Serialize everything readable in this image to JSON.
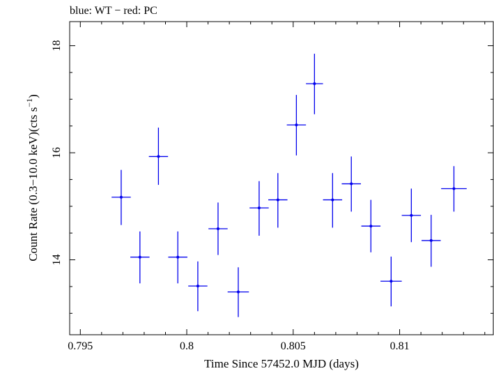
{
  "chart_data": {
    "type": "scatter",
    "title": "blue: WT − red: PC",
    "xlabel": "Time Since 57452.0 MJD (days)",
    "ylabel_main": "Count Rate (0.3−10.0 keV)(cts s",
    "ylabel_sup": "−1",
    "ylabel_end": ")",
    "xlim": [
      0.7945,
      0.8144
    ],
    "ylim": [
      12.6,
      18.45
    ],
    "xticks": [
      0.795,
      0.8,
      0.805,
      0.81
    ],
    "xtick_labels": [
      "0.795",
      "0.8",
      "0.805",
      "0.81"
    ],
    "yticks": [
      14,
      16,
      18
    ],
    "ytick_labels": [
      "14",
      "16",
      "18"
    ],
    "grid": false,
    "series": [
      {
        "color": "#0000ee",
        "points": [
          {
            "x": 0.79692,
            "y": 15.17,
            "xerr": 0.00045,
            "ylo": 14.65,
            "yhi": 15.68
          },
          {
            "x": 0.7978,
            "y": 14.05,
            "xerr": 0.00045,
            "ylo": 13.56,
            "yhi": 14.53
          },
          {
            "x": 0.79867,
            "y": 15.93,
            "xerr": 0.00045,
            "ylo": 15.4,
            "yhi": 16.47
          },
          {
            "x": 0.79958,
            "y": 14.05,
            "xerr": 0.00045,
            "ylo": 13.56,
            "yhi": 14.53
          },
          {
            "x": 0.80052,
            "y": 13.51,
            "xerr": 0.00045,
            "ylo": 13.04,
            "yhi": 13.97
          },
          {
            "x": 0.80147,
            "y": 14.58,
            "xerr": 0.00045,
            "ylo": 14.09,
            "yhi": 15.07
          },
          {
            "x": 0.80242,
            "y": 13.4,
            "xerr": 0.0005,
            "ylo": 12.93,
            "yhi": 13.86
          },
          {
            "x": 0.8034,
            "y": 14.97,
            "xerr": 0.00045,
            "ylo": 14.45,
            "yhi": 15.47
          },
          {
            "x": 0.80428,
            "y": 15.12,
            "xerr": 0.00045,
            "ylo": 14.6,
            "yhi": 15.62
          },
          {
            "x": 0.80515,
            "y": 16.52,
            "xerr": 0.00045,
            "ylo": 15.95,
            "yhi": 17.08
          },
          {
            "x": 0.806,
            "y": 17.29,
            "xerr": 0.0004,
            "ylo": 16.72,
            "yhi": 17.85
          },
          {
            "x": 0.80685,
            "y": 15.12,
            "xerr": 0.00045,
            "ylo": 14.6,
            "yhi": 15.62
          },
          {
            "x": 0.80773,
            "y": 15.42,
            "xerr": 0.00045,
            "ylo": 14.9,
            "yhi": 15.93
          },
          {
            "x": 0.80865,
            "y": 14.63,
            "xerr": 0.00045,
            "ylo": 14.14,
            "yhi": 15.12
          },
          {
            "x": 0.8096,
            "y": 13.6,
            "xerr": 0.0005,
            "ylo": 13.13,
            "yhi": 14.06
          },
          {
            "x": 0.81055,
            "y": 14.83,
            "xerr": 0.00045,
            "ylo": 14.33,
            "yhi": 15.33
          },
          {
            "x": 0.81148,
            "y": 14.36,
            "xerr": 0.00045,
            "ylo": 13.87,
            "yhi": 14.84
          },
          {
            "x": 0.81255,
            "y": 15.33,
            "xerr": 0.0006,
            "ylo": 14.9,
            "yhi": 15.75
          }
        ]
      }
    ]
  }
}
